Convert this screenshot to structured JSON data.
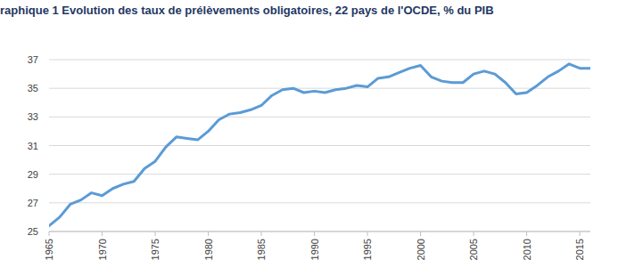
{
  "chart_data": {
    "type": "line",
    "title": "raphique 1  Evolution des taux de prélèvements obligatoires, 22 pays de l'OCDE, % du PIB",
    "x": [
      1965,
      1966,
      1967,
      1968,
      1969,
      1970,
      1971,
      1972,
      1973,
      1974,
      1975,
      1976,
      1977,
      1978,
      1979,
      1980,
      1981,
      1982,
      1983,
      1984,
      1985,
      1986,
      1987,
      1988,
      1989,
      1990,
      1991,
      1992,
      1993,
      1994,
      1995,
      1996,
      1997,
      1998,
      1999,
      2000,
      2001,
      2002,
      2003,
      2004,
      2005,
      2006,
      2007,
      2008,
      2009,
      2010,
      2011,
      2012,
      2013,
      2014,
      2015,
      2016
    ],
    "values": [
      25.4,
      26.0,
      26.9,
      27.2,
      27.7,
      27.5,
      28.0,
      28.3,
      28.5,
      29.4,
      29.9,
      30.9,
      31.6,
      31.5,
      31.4,
      32.0,
      32.8,
      33.2,
      33.3,
      33.5,
      33.8,
      34.5,
      34.9,
      35.0,
      34.7,
      34.8,
      34.7,
      34.9,
      35.0,
      35.2,
      35.1,
      35.7,
      35.8,
      36.1,
      36.4,
      36.6,
      35.8,
      35.5,
      35.4,
      35.4,
      36.0,
      36.2,
      36.0,
      35.4,
      34.6,
      34.7,
      35.2,
      35.8,
      36.2,
      36.7,
      36.4,
      36.4
    ],
    "color": "#5b9bd5",
    "xlim": [
      1965,
      2016
    ],
    "xticks": [
      1965,
      1970,
      1975,
      1980,
      1985,
      1990,
      1995,
      2000,
      2005,
      2010,
      2015
    ],
    "ylim": [
      25,
      37
    ],
    "yticks": [
      25,
      27,
      29,
      31,
      33,
      35,
      37
    ],
    "grid": true
  }
}
